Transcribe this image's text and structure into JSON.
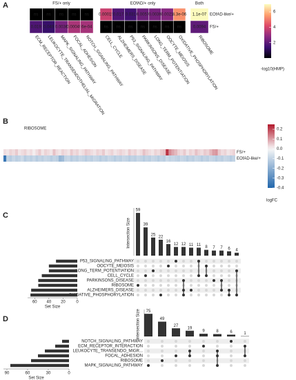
{
  "panel_labels": [
    "A",
    "B",
    "C",
    "D"
  ],
  "chart_data": [
    {
      "type": "heatmap",
      "scale": "-log10",
      "colorbar_label": "-log10(HMP)",
      "rows": [
        "EOfAD-like/+",
        "FS/+"
      ],
      "colormap": [
        "#000004",
        "#3b0f70",
        "#8c2981",
        "#de4968",
        "#fe9f6d",
        "#fcfdbf"
      ],
      "na_color": "#000000",
      "clim": [
        0,
        7
      ],
      "cticks": [
        2,
        4,
        6
      ],
      "groups": [
        {
          "title": "FS/+ only",
          "columns": [
            "ECM_RECEPTOR_REACTION",
            "LEUKOCYTE_TRANSENDOTHELIAL_MIGRATION",
            "MAPK_SIGNALING_PATHWAY",
            "FOCAL_ADHESION",
            "NOTCH_SIGNALING_PATHWAY"
          ],
          "values": [
            [
              null,
              null,
              null,
              null,
              null
            ],
            [
              0.019,
              0.049,
              0.0036,
              0.00049,
              0.0006
            ]
          ],
          "value_labels": [
            [
              "ns",
              "ns",
              "ns",
              "ns",
              "ns"
            ],
            [
              "0.019",
              "0.049",
              "0.0036",
              "0.00049",
              "6e-04"
            ]
          ]
        },
        {
          "title": "EOfAD/+ only",
          "columns": [
            "CELL_CYCLE",
            "ALZHEIMERS_DISEASE",
            "P53_SIGNALING_PATHWAY",
            "PARKINSONS_DISEASE",
            "LONG_TERM_POTENTIATION",
            "OOCYTE_MEIOSIS",
            "OXIDATIVE_PHOSPHORYLATION"
          ],
          "values": [
            [
              0.00015,
              0.017,
              0.031,
              0.0057,
              0.0036,
              0.0021,
              4.3e-06
            ],
            [
              null,
              null,
              null,
              null,
              null,
              null,
              null
            ]
          ],
          "value_labels": [
            [
              "0.00015",
              "0.017",
              "0.031",
              "0.0057",
              "0.0036",
              "0.0021",
              "4.3e-06"
            ],
            [
              "ns",
              "ns",
              "ns",
              "ns",
              "ns",
              "ns",
              "ns"
            ]
          ]
        },
        {
          "title": "Both",
          "columns": [
            "RIBOSOME"
          ],
          "values": [
            [
              1.1e-07
            ],
            [
              0.0094
            ]
          ],
          "value_labels": [
            [
              "1.1e-07"
            ],
            [
              "0.0094"
            ]
          ]
        }
      ]
    },
    {
      "type": "heatmap",
      "diverging": true,
      "colorbar_label": "logFC",
      "rows": [
        "FS/+",
        "EOfAD-like/+"
      ],
      "colormap": [
        "#2166ac",
        "#f7f7f7",
        "#b2182b"
      ],
      "na_color": "#ffffff",
      "clim": [
        -0.4,
        0.25
      ],
      "cticks": [
        0.2,
        0.1,
        {
          "value": 0,
          "label": "0.0"
        },
        -0.1,
        -0.2,
        -0.3,
        -0.4
      ],
      "groups": [
        {
          "title": "RIBOSOME",
          "values": [
            [
              0.03,
              0.02,
              0.04,
              0.03,
              0.05,
              0.02,
              0.03,
              0.04,
              0.02,
              0.03,
              0.01,
              0.03,
              0.05,
              0.02,
              0.04,
              0.03,
              0.02,
              0.06,
              0.03,
              0.02,
              0.04,
              0.03,
              0.02,
              0.05,
              0.03,
              0.04,
              0.02,
              0.03,
              0.05,
              0.04,
              0.03,
              0.02,
              0.04,
              0.03,
              0.05,
              0.02,
              0.03,
              0.04,
              0.02,
              0.03,
              0.04,
              0.03,
              0.02,
              0.05,
              0.03,
              0.04,
              0.02,
              0.03,
              0.06,
              0.04,
              0.03,
              0.02,
              0.04,
              0.03,
              0.05,
              0.06,
              0.22,
              0.12,
              0.09,
              0.07,
              0.04,
              0.03,
              0.05,
              0.02,
              0.04,
              0.03,
              0.06,
              0.04,
              0.03,
              0.05,
              0.04,
              0.07,
              0.1,
              0.11,
              0.05,
              0.03,
              0.04,
              0.02,
              0.03,
              0.04
            ],
            [
              -0.35,
              -0.1,
              -0.12,
              -0.09,
              -0.11,
              -0.1,
              -0.08,
              -0.12,
              -0.1,
              -0.11,
              -0.09,
              -0.12,
              -0.1,
              -0.11,
              -0.09,
              -0.1,
              -0.12,
              -0.1,
              -0.11,
              -0.18,
              -0.16,
              -0.1,
              -0.09,
              -0.12,
              -0.1,
              -0.11,
              -0.09,
              -0.1,
              -0.12,
              -0.1,
              -0.11,
              -0.09,
              -0.1,
              -0.12,
              -0.1,
              -0.11,
              -0.09,
              -0.1,
              -0.12,
              -0.1,
              -0.11,
              -0.09,
              -0.1,
              -0.12,
              -0.1,
              -0.11,
              -0.09,
              -0.1,
              -0.12,
              -0.1,
              -0.11,
              -0.09,
              -0.1,
              -0.12,
              -0.1,
              -0.11,
              -0.08,
              -0.1,
              -0.09,
              -0.1,
              -0.11,
              -0.09,
              -0.1,
              -0.12,
              -0.1,
              -0.11,
              -0.09,
              -0.1,
              -0.12,
              -0.1,
              -0.11,
              -0.09,
              -0.1,
              -0.12,
              -0.1,
              -0.11,
              -0.09,
              -0.1,
              -0.12,
              -0.1
            ]
          ]
        }
      ]
    },
    {
      "type": "upset",
      "ylabel": "Intersection Size",
      "set_size_label": "Set Size",
      "color": "#333333",
      "sets": [
        "P53_SIGNALING_PATHWAY",
        "OOCYTE_MEIOSIS",
        "LONG_TERM_POTENTIATION",
        "CELL_CYCLE",
        "PARKINSONS_DISEASE",
        "RIBOSOME",
        "ALZHEIMERS_DISEASE",
        "OXIDATIVE_PHOSPHORYLATION"
      ],
      "set_sizes": [
        30,
        40,
        40,
        50,
        55,
        55,
        65,
        66
      ],
      "set_size_lim": [
        0,
        70
      ],
      "set_size_ticks": [
        60,
        40,
        20,
        0
      ],
      "values": [
        59,
        39,
        25,
        22,
        16,
        12,
        12,
        11,
        11,
        8,
        7,
        7,
        6,
        4
      ],
      "memberships": [
        [
          5
        ],
        [
          3
        ],
        [
          2
        ],
        [
          7
        ],
        [
          1
        ],
        [
          0
        ],
        [
          4,
          6,
          7
        ],
        [
          6
        ],
        [
          0,
          3
        ],
        [
          1,
          3
        ],
        [
          4
        ],
        [
          4,
          6
        ],
        [
          6,
          7
        ],
        [
          2,
          7
        ]
      ],
      "ylim": [
        0,
        62
      ]
    },
    {
      "type": "upset",
      "ylabel": "Intersection Size",
      "set_size_label": "Set Size",
      "color": "#333333",
      "sets": [
        "NOTCH_SIGNALING_PATHWAY",
        "ECM_RECEPTOR_INTERACTION",
        "LEUKOCYTE_TRANSENDO_MIGR...",
        "FOCAL_ADHESION",
        "RIBOSOME",
        "MAPK_SIGNALING_PATHWAY"
      ],
      "set_sizes": [
        10,
        20,
        35,
        45,
        55,
        85
      ],
      "set_size_lim": [
        0,
        95
      ],
      "set_size_ticks": [
        90,
        60,
        30,
        0
      ],
      "values": [
        75,
        49,
        27,
        19,
        9,
        8,
        6,
        1
      ],
      "memberships": [
        [
          5
        ],
        [
          4
        ],
        [
          3
        ],
        [
          2,
          3
        ],
        [
          1
        ],
        [
          2,
          3,
          5
        ],
        [
          0
        ],
        [
          1,
          3
        ]
      ],
      "ylim": [
        0,
        80
      ]
    }
  ]
}
